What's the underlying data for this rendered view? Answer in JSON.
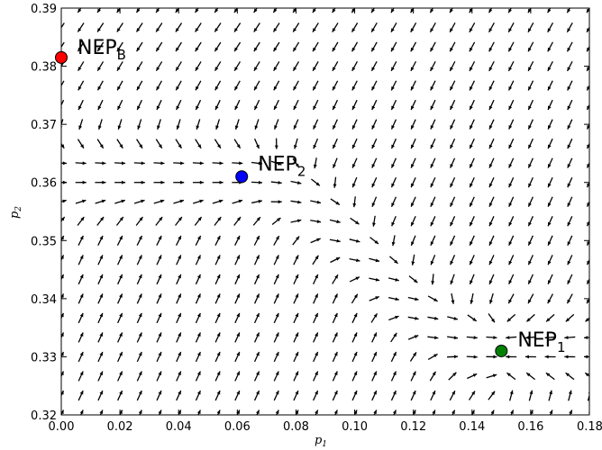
{
  "chart_data": {
    "type": "quiver",
    "title": "",
    "xlabel": "p",
    "xlabel_sub": "1",
    "ylabel": "p",
    "ylabel_sub": "2",
    "xlim": [
      0.0,
      0.18
    ],
    "ylim": [
      0.32,
      0.39
    ],
    "xticks": [
      "0.00",
      "0.02",
      "0.04",
      "0.06",
      "0.08",
      "0.10",
      "0.12",
      "0.14",
      "0.16",
      "0.18"
    ],
    "yticks": [
      "0.32",
      "0.33",
      "0.34",
      "0.35",
      "0.36",
      "0.37",
      "0.38",
      "0.39"
    ],
    "grid": false,
    "points": [
      {
        "label": "NEP",
        "sub": "B",
        "x": 0.0,
        "y": 0.3815,
        "color": "#ff0000"
      },
      {
        "label": "NEP",
        "sub": "2",
        "x": 0.0615,
        "y": 0.361,
        "color": "#0000ff"
      },
      {
        "label": "NEP",
        "sub": "1",
        "x": 0.15,
        "y": 0.331,
        "color": "#008000"
      }
    ],
    "field": {
      "x_start": 0.0,
      "x_end": 0.18,
      "x_count": 28,
      "y_start": 0.32,
      "y_end": 0.39,
      "y_count": 22
    }
  }
}
